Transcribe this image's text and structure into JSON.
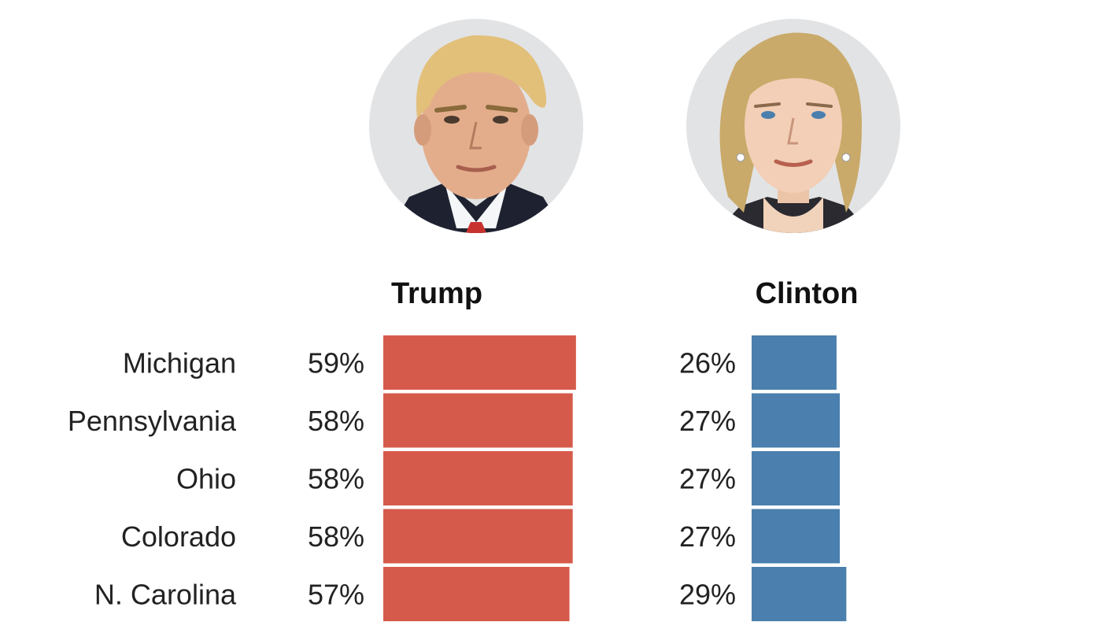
{
  "colors": {
    "trump": "#d65a4b",
    "clinton": "#4a7fae",
    "portrait_bg": "#e2e3e5"
  },
  "candidates": [
    {
      "name": "Trump",
      "portrait_icon": "trump-portrait-icon"
    },
    {
      "name": "Clinton",
      "portrait_icon": "clinton-portrait-icon"
    }
  ],
  "chart_data": {
    "type": "bar",
    "categories": [
      "Michigan",
      "Pennsylvania",
      "Ohio",
      "Colorado",
      "N. Carolina"
    ],
    "series": [
      {
        "name": "Trump",
        "values": [
          59,
          58,
          58,
          58,
          57
        ],
        "labels": [
          "59%",
          "58%",
          "58%",
          "58%",
          "57%"
        ]
      },
      {
        "name": "Clinton",
        "values": [
          26,
          27,
          27,
          27,
          29
        ],
        "labels": [
          "26%",
          "27%",
          "27%",
          "27%",
          "29%"
        ]
      }
    ],
    "unit": "%",
    "grid": false
  }
}
